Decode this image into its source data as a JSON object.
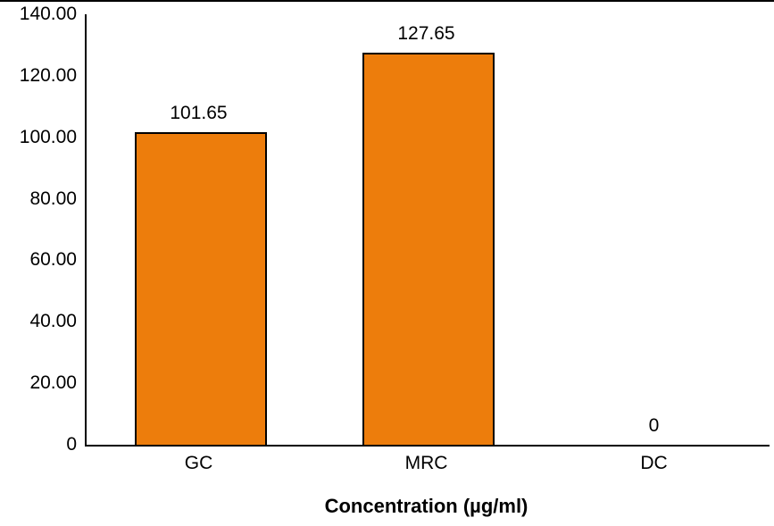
{
  "chart_data": {
    "type": "bar",
    "categories": [
      "GC",
      "MRC",
      "DC"
    ],
    "values": [
      101.65,
      127.65,
      0
    ],
    "value_labels": [
      "101.65",
      "127.65",
      "0"
    ],
    "title": "",
    "xlabel": "Concentration (µg/ml)",
    "ylabel": "",
    "ylim": [
      0,
      140
    ],
    "y_ticks": [
      140,
      120,
      100,
      80,
      60,
      40,
      20,
      0
    ],
    "y_tick_labels": [
      "140.00",
      "120.00",
      "100.00",
      "80.00",
      "60.00",
      "40.00",
      "20.00",
      "0"
    ],
    "grid": false,
    "legend_position": "none",
    "colors": {
      "bar_fill": "#ED7D0C",
      "bar_border": "#000000",
      "axis": "#000000",
      "text": "#000000",
      "background": "#FFFFFF"
    }
  }
}
